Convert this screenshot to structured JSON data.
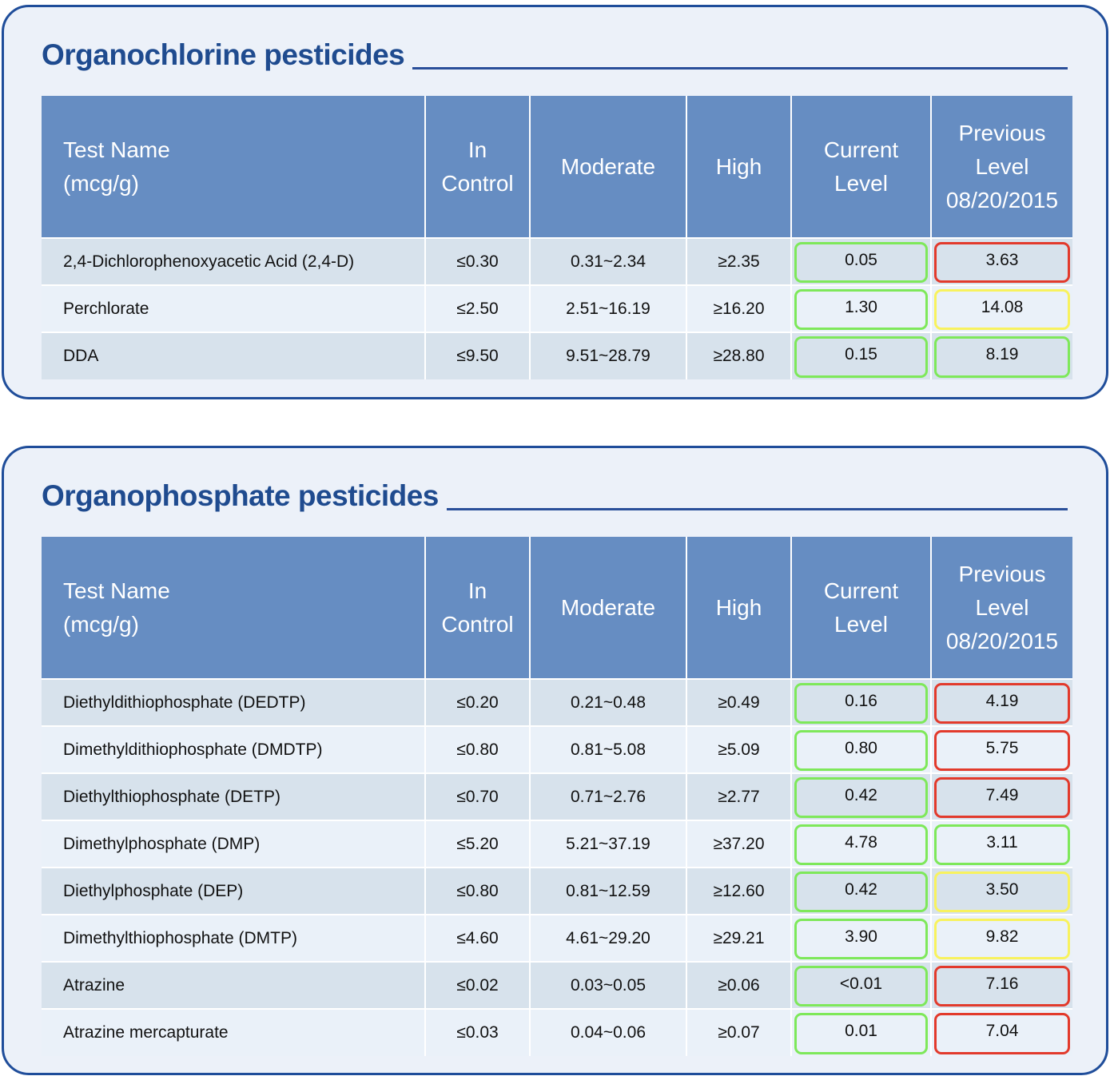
{
  "header_labels": {
    "test_name": [
      "Test Name",
      "(mcg/g)"
    ],
    "in_control": [
      "In",
      "Control"
    ],
    "moderate": "Moderate",
    "high": "High",
    "current": [
      "Current",
      "Level"
    ],
    "previous": [
      "Previous",
      "Level",
      "08/20/2015"
    ]
  },
  "colors": {
    "header_bg": "#668dc2",
    "title": "#1f4b8f",
    "green": "#7ee85a",
    "red": "#e23a2c",
    "yellow": "#f8f25e"
  },
  "sections": [
    {
      "title": "Organochlorine pesticides",
      "rows": [
        {
          "name": "2,4-Dichlorophenoxyacetic Acid (2,4-D)",
          "in_control": "≤0.30",
          "moderate": "0.31~2.34",
          "high": "≥2.35",
          "current": "0.05",
          "current_status": "green",
          "previous": "3.63",
          "previous_status": "red"
        },
        {
          "name": "Perchlorate",
          "in_control": "≤2.50",
          "moderate": "2.51~16.19",
          "high": "≥16.20",
          "current": "1.30",
          "current_status": "green",
          "previous": "14.08",
          "previous_status": "yellow"
        },
        {
          "name": "DDA",
          "in_control": "≤9.50",
          "moderate": "9.51~28.79",
          "high": "≥28.80",
          "current": "0.15",
          "current_status": "green",
          "previous": "8.19",
          "previous_status": "green"
        }
      ]
    },
    {
      "title": "Organophosphate pesticides",
      "rows": [
        {
          "name": "Diethyldithiophosphate (DEDTP)",
          "in_control": "≤0.20",
          "moderate": "0.21~0.48",
          "high": "≥0.49",
          "current": "0.16",
          "current_status": "green",
          "previous": "4.19",
          "previous_status": "red"
        },
        {
          "name": "Dimethyldithiophosphate (DMDTP)",
          "in_control": "≤0.80",
          "moderate": "0.81~5.08",
          "high": "≥5.09",
          "current": "0.80",
          "current_status": "green",
          "previous": "5.75",
          "previous_status": "red"
        },
        {
          "name": "Diethylthiophosphate (DETP)",
          "in_control": "≤0.70",
          "moderate": "0.71~2.76",
          "high": "≥2.77",
          "current": "0.42",
          "current_status": "green",
          "previous": "7.49",
          "previous_status": "red"
        },
        {
          "name": "Dimethylphosphate (DMP)",
          "in_control": "≤5.20",
          "moderate": "5.21~37.19",
          "high": "≥37.20",
          "current": "4.78",
          "current_status": "green",
          "previous": "3.11",
          "previous_status": "green"
        },
        {
          "name": "Diethylphosphate (DEP)",
          "in_control": "≤0.80",
          "moderate": "0.81~12.59",
          "high": "≥12.60",
          "current": "0.42",
          "current_status": "green",
          "previous": "3.50",
          "previous_status": "yellow"
        },
        {
          "name": "Dimethylthiophosphate (DMTP)",
          "in_control": "≤4.60",
          "moderate": "4.61~29.20",
          "high": "≥29.21",
          "current": "3.90",
          "current_status": "green",
          "previous": "9.82",
          "previous_status": "yellow"
        },
        {
          "name": "Atrazine",
          "in_control": "≤0.02",
          "moderate": "0.03~0.05",
          "high": "≥0.06",
          "current": "<0.01",
          "current_status": "green",
          "previous": "7.16",
          "previous_status": "red"
        },
        {
          "name": "Atrazine mercapturate",
          "in_control": "≤0.03",
          "moderate": "0.04~0.06",
          "high": "≥0.07",
          "current": "0.01",
          "current_status": "green",
          "previous": "7.04",
          "previous_status": "red"
        }
      ]
    }
  ]
}
